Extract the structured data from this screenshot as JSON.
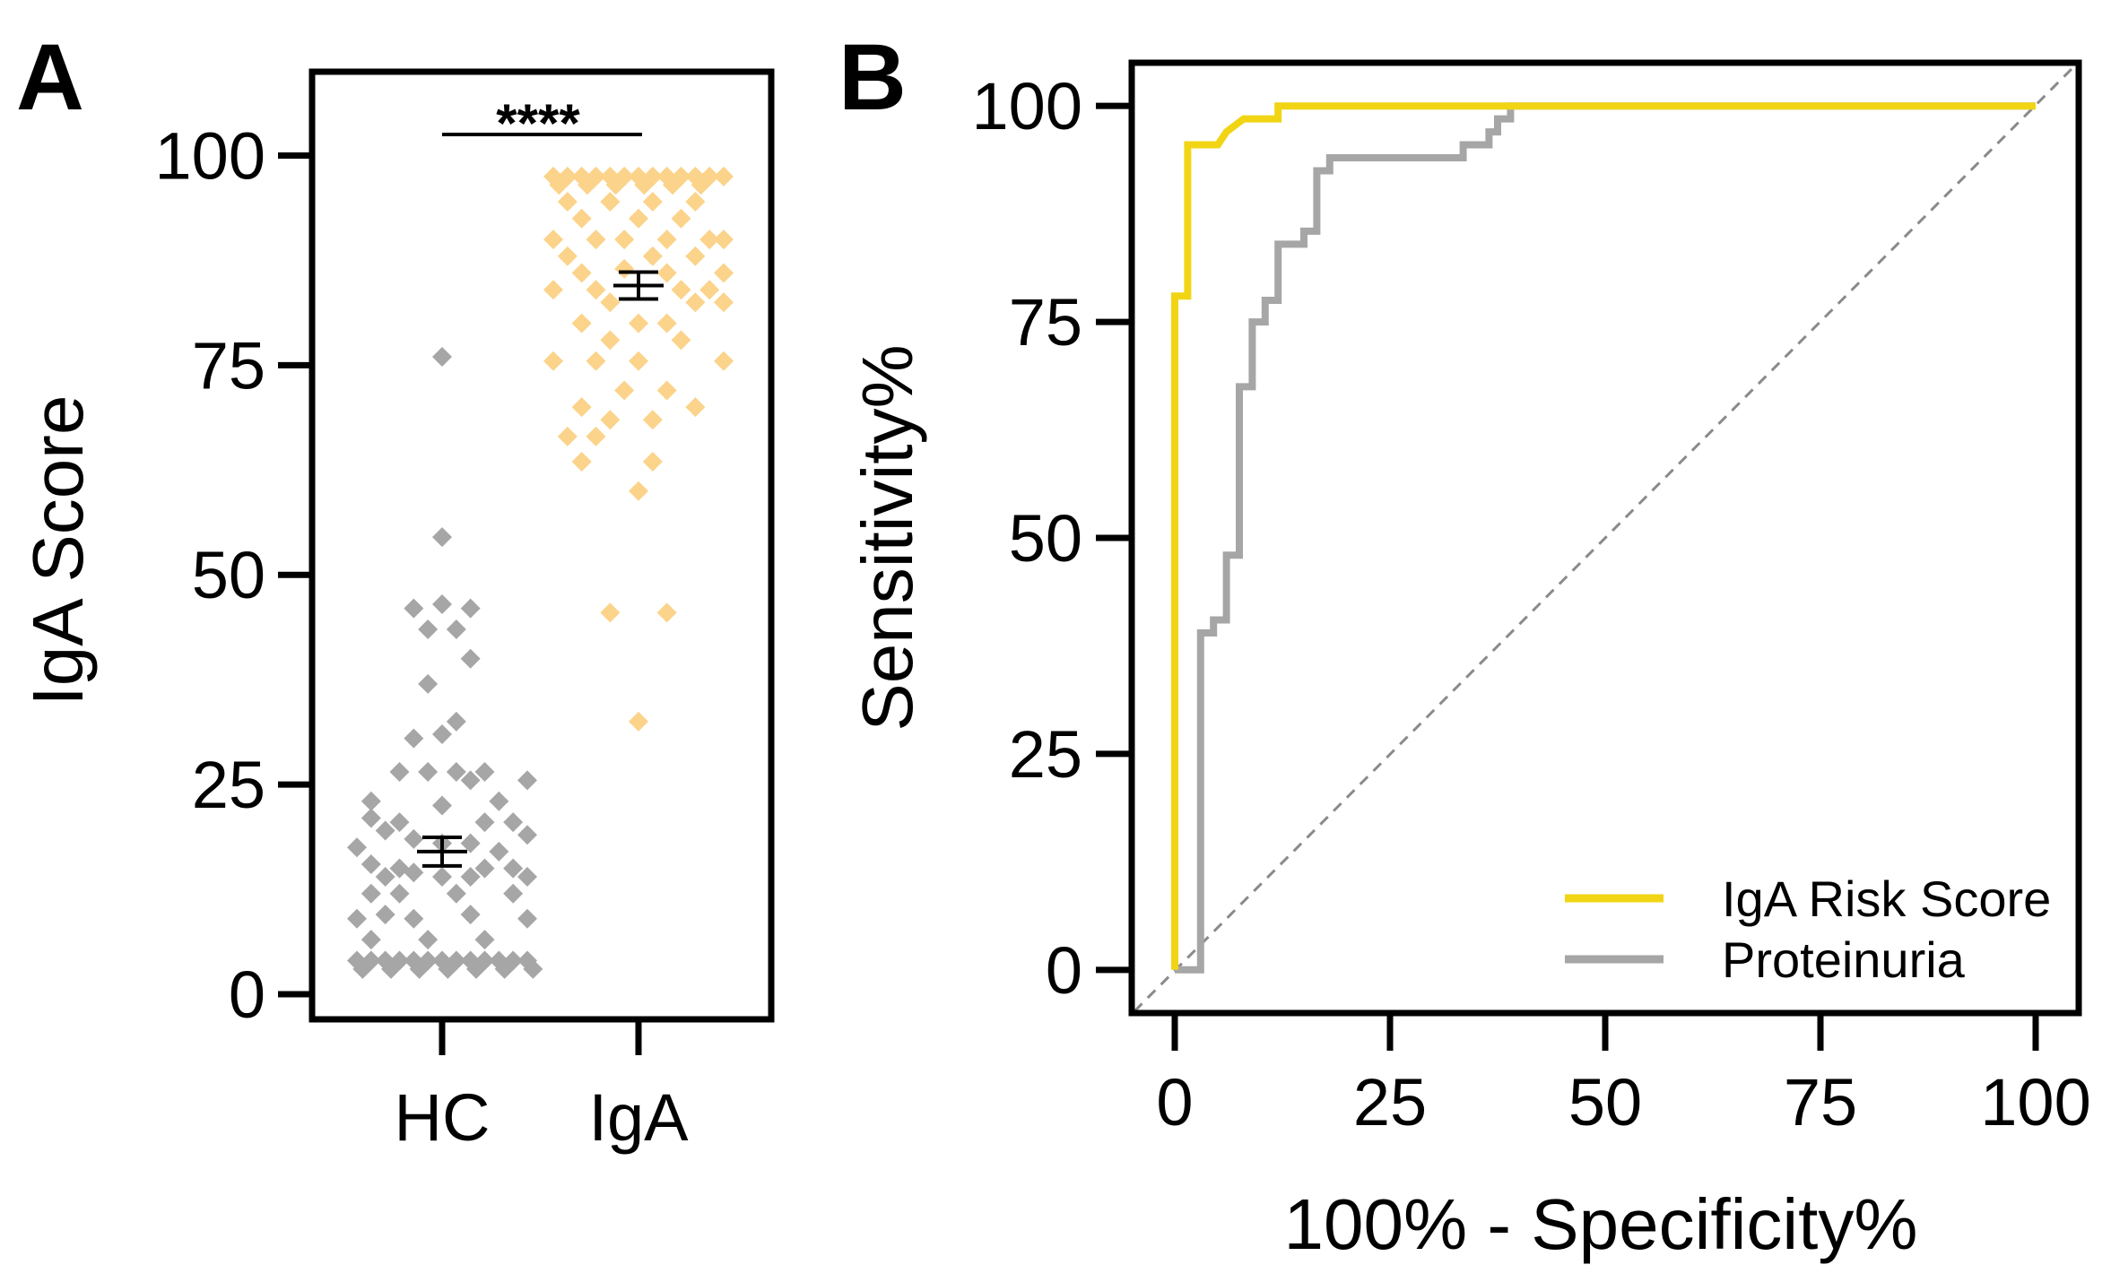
{
  "chart_data": [
    {
      "panel": "A",
      "type": "scatter",
      "subtype": "dot-plot",
      "ylabel": "IgA Score",
      "ylim": [
        -3,
        110
      ],
      "yticks": [
        0,
        25,
        50,
        75,
        100
      ],
      "categories": [
        "HC",
        "IgA"
      ],
      "significance": "****",
      "series": [
        {
          "name": "HC",
          "color": "#a6a6a6",
          "mean": 17,
          "sem": 1.7,
          "points": [
            {
              "x": 0,
              "y": 76
            },
            {
              "x": 0,
              "y": 54.5
            },
            {
              "x": -0.1,
              "y": 46
            },
            {
              "x": 0,
              "y": 46.5
            },
            {
              "x": 0.1,
              "y": 46
            },
            {
              "x": 0.05,
              "y": 43.5
            },
            {
              "x": -0.05,
              "y": 43.5
            },
            {
              "x": 0.1,
              "y": 40
            },
            {
              "x": -0.05,
              "y": 37
            },
            {
              "x": 0.05,
              "y": 32.5
            },
            {
              "x": -0.1,
              "y": 30.5
            },
            {
              "x": 0,
              "y": 31
            },
            {
              "x": -0.15,
              "y": 26.5
            },
            {
              "x": -0.05,
              "y": 26.5
            },
            {
              "x": 0.05,
              "y": 26.5
            },
            {
              "x": 0.15,
              "y": 26.5
            },
            {
              "x": 0.1,
              "y": 25.5
            },
            {
              "x": 0.3,
              "y": 25.5
            },
            {
              "x": -0.25,
              "y": 23
            },
            {
              "x": 0,
              "y": 22.5
            },
            {
              "x": 0.2,
              "y": 23
            },
            {
              "x": -0.25,
              "y": 21
            },
            {
              "x": -0.15,
              "y": 20.5
            },
            {
              "x": 0.15,
              "y": 20.5
            },
            {
              "x": 0.25,
              "y": 20.5
            },
            {
              "x": -0.2,
              "y": 19.5
            },
            {
              "x": -0.1,
              "y": 18.5
            },
            {
              "x": 0,
              "y": 18
            },
            {
              "x": 0.1,
              "y": 18
            },
            {
              "x": 0.3,
              "y": 19
            },
            {
              "x": -0.3,
              "y": 17.5
            },
            {
              "x": 0.2,
              "y": 17
            },
            {
              "x": -0.25,
              "y": 15.5
            },
            {
              "x": -0.15,
              "y": 15
            },
            {
              "x": 0.15,
              "y": 15
            },
            {
              "x": 0.25,
              "y": 15
            },
            {
              "x": -0.2,
              "y": 14
            },
            {
              "x": -0.1,
              "y": 14.5
            },
            {
              "x": 0,
              "y": 14
            },
            {
              "x": 0.1,
              "y": 14
            },
            {
              "x": 0.3,
              "y": 14
            },
            {
              "x": -0.25,
              "y": 12
            },
            {
              "x": -0.15,
              "y": 12
            },
            {
              "x": 0.05,
              "y": 12
            },
            {
              "x": 0.25,
              "y": 12
            },
            {
              "x": -0.3,
              "y": 9
            },
            {
              "x": -0.2,
              "y": 9.5
            },
            {
              "x": -0.1,
              "y": 9
            },
            {
              "x": 0.1,
              "y": 9.5
            },
            {
              "x": 0.3,
              "y": 9
            },
            {
              "x": -0.25,
              "y": 6.5
            },
            {
              "x": -0.05,
              "y": 6.5
            },
            {
              "x": 0.15,
              "y": 6.5
            },
            {
              "x": -0.3,
              "y": 4
            },
            {
              "x": -0.25,
              "y": 4
            },
            {
              "x": -0.2,
              "y": 4
            },
            {
              "x": -0.15,
              "y": 4
            },
            {
              "x": -0.1,
              "y": 4
            },
            {
              "x": -0.05,
              "y": 4
            },
            {
              "x": 0,
              "y": 4
            },
            {
              "x": 0.05,
              "y": 4
            },
            {
              "x": 0.1,
              "y": 4
            },
            {
              "x": 0.15,
              "y": 4
            },
            {
              "x": 0.2,
              "y": 4
            },
            {
              "x": 0.25,
              "y": 4
            },
            {
              "x": 0.3,
              "y": 4
            },
            {
              "x": -0.28,
              "y": 3
            },
            {
              "x": -0.18,
              "y": 3
            },
            {
              "x": -0.08,
              "y": 3
            },
            {
              "x": 0.02,
              "y": 3
            },
            {
              "x": 0.12,
              "y": 3
            },
            {
              "x": 0.22,
              "y": 3
            },
            {
              "x": 0.32,
              "y": 3
            }
          ]
        },
        {
          "name": "IgA",
          "color": "#fbd38a",
          "mean": 84.5,
          "sem": 1.6,
          "points": [
            {
              "x": -0.3,
              "y": 97.5
            },
            {
              "x": -0.25,
              "y": 97.5
            },
            {
              "x": -0.2,
              "y": 97.5
            },
            {
              "x": -0.15,
              "y": 97.5
            },
            {
              "x": -0.1,
              "y": 97.5
            },
            {
              "x": -0.05,
              "y": 97.5
            },
            {
              "x": 0,
              "y": 97.5
            },
            {
              "x": 0.05,
              "y": 97.5
            },
            {
              "x": 0.1,
              "y": 97.5
            },
            {
              "x": 0.15,
              "y": 97.5
            },
            {
              "x": 0.2,
              "y": 97.5
            },
            {
              "x": 0.25,
              "y": 97.5
            },
            {
              "x": 0.3,
              "y": 97.5
            },
            {
              "x": -0.28,
              "y": 96.5
            },
            {
              "x": -0.18,
              "y": 96.5
            },
            {
              "x": -0.08,
              "y": 96.5
            },
            {
              "x": 0.02,
              "y": 96.5
            },
            {
              "x": 0.12,
              "y": 96.5
            },
            {
              "x": 0.22,
              "y": 96.5
            },
            {
              "x": -0.25,
              "y": 94.5
            },
            {
              "x": -0.1,
              "y": 94.5
            },
            {
              "x": 0.05,
              "y": 94.5
            },
            {
              "x": 0.2,
              "y": 94.5
            },
            {
              "x": -0.2,
              "y": 92.5
            },
            {
              "x": 0,
              "y": 92.5
            },
            {
              "x": 0.15,
              "y": 92.5
            },
            {
              "x": -0.3,
              "y": 90
            },
            {
              "x": -0.15,
              "y": 90
            },
            {
              "x": -0.05,
              "y": 90
            },
            {
              "x": 0.1,
              "y": 90
            },
            {
              "x": 0.25,
              "y": 90
            },
            {
              "x": 0.3,
              "y": 90
            },
            {
              "x": -0.25,
              "y": 88
            },
            {
              "x": 0.05,
              "y": 88
            },
            {
              "x": 0.2,
              "y": 88
            },
            {
              "x": -0.2,
              "y": 86
            },
            {
              "x": -0.05,
              "y": 86.5
            },
            {
              "x": 0.1,
              "y": 86
            },
            {
              "x": 0.3,
              "y": 86
            },
            {
              "x": -0.3,
              "y": 84
            },
            {
              "x": -0.15,
              "y": 84
            },
            {
              "x": 0.15,
              "y": 84
            },
            {
              "x": 0.25,
              "y": 84
            },
            {
              "x": -0.1,
              "y": 82.5
            },
            {
              "x": 0.2,
              "y": 82.5
            },
            {
              "x": 0.3,
              "y": 82.5
            },
            {
              "x": -0.2,
              "y": 80
            },
            {
              "x": 0,
              "y": 80
            },
            {
              "x": 0.1,
              "y": 80
            },
            {
              "x": -0.1,
              "y": 78
            },
            {
              "x": 0.15,
              "y": 78
            },
            {
              "x": -0.3,
              "y": 75.5
            },
            {
              "x": -0.15,
              "y": 75.5
            },
            {
              "x": 0,
              "y": 75.5
            },
            {
              "x": 0.3,
              "y": 75.5
            },
            {
              "x": -0.05,
              "y": 72
            },
            {
              "x": 0.1,
              "y": 72
            },
            {
              "x": -0.2,
              "y": 70
            },
            {
              "x": 0.2,
              "y": 70
            },
            {
              "x": -0.1,
              "y": 68.5
            },
            {
              "x": 0.05,
              "y": 68.5
            },
            {
              "x": -0.25,
              "y": 66.5
            },
            {
              "x": -0.15,
              "y": 66.5
            },
            {
              "x": -0.2,
              "y": 63.5
            },
            {
              "x": 0.05,
              "y": 63.5
            },
            {
              "x": 0,
              "y": 60
            },
            {
              "x": -0.1,
              "y": 45.5
            },
            {
              "x": 0.1,
              "y": 45.5
            },
            {
              "x": 0,
              "y": 32.5
            }
          ]
        }
      ]
    },
    {
      "panel": "B",
      "type": "line",
      "subtype": "roc",
      "xlabel": "100% - Specificity%",
      "ylabel": "Sensitivity%",
      "xlim": [
        -5,
        105
      ],
      "ylim": [
        -5,
        105
      ],
      "xticks": [
        0,
        25,
        50,
        75,
        100
      ],
      "yticks": [
        0,
        25,
        50,
        75,
        100
      ],
      "reference_line": "diagonal",
      "legend_position": "bottom-right",
      "series": [
        {
          "name": "IgA Risk Score",
          "color": "#f1d514",
          "points": [
            [
              0,
              0
            ],
            [
              0,
              78
            ],
            [
              1.5,
              78
            ],
            [
              1.5,
              95.5
            ],
            [
              5,
              95.5
            ],
            [
              6,
              97
            ],
            [
              8,
              98.5
            ],
            [
              12,
              98.5
            ],
            [
              12,
              100
            ],
            [
              100,
              100
            ]
          ]
        },
        {
          "name": "Proteinuria",
          "color": "#a6a6a6",
          "points": [
            [
              0,
              0
            ],
            [
              3,
              0
            ],
            [
              3,
              39
            ],
            [
              4.5,
              39
            ],
            [
              4.5,
              40.5
            ],
            [
              6,
              40.5
            ],
            [
              6,
              48
            ],
            [
              7.5,
              48
            ],
            [
              7.5,
              67.5
            ],
            [
              9,
              67.5
            ],
            [
              9,
              75
            ],
            [
              10.5,
              75
            ],
            [
              10.5,
              77.5
            ],
            [
              12,
              77.5
            ],
            [
              12,
              84
            ],
            [
              15,
              84
            ],
            [
              15,
              85.5
            ],
            [
              16.5,
              85.5
            ],
            [
              16.5,
              92.5
            ],
            [
              18,
              92.5
            ],
            [
              18,
              94
            ],
            [
              33.5,
              94
            ],
            [
              33.5,
              95.5
            ],
            [
              36.5,
              95.5
            ],
            [
              36.5,
              97
            ],
            [
              37.5,
              97
            ],
            [
              37.5,
              98.5
            ],
            [
              39,
              98.5
            ],
            [
              39,
              100
            ],
            [
              100,
              100
            ]
          ]
        }
      ]
    }
  ]
}
